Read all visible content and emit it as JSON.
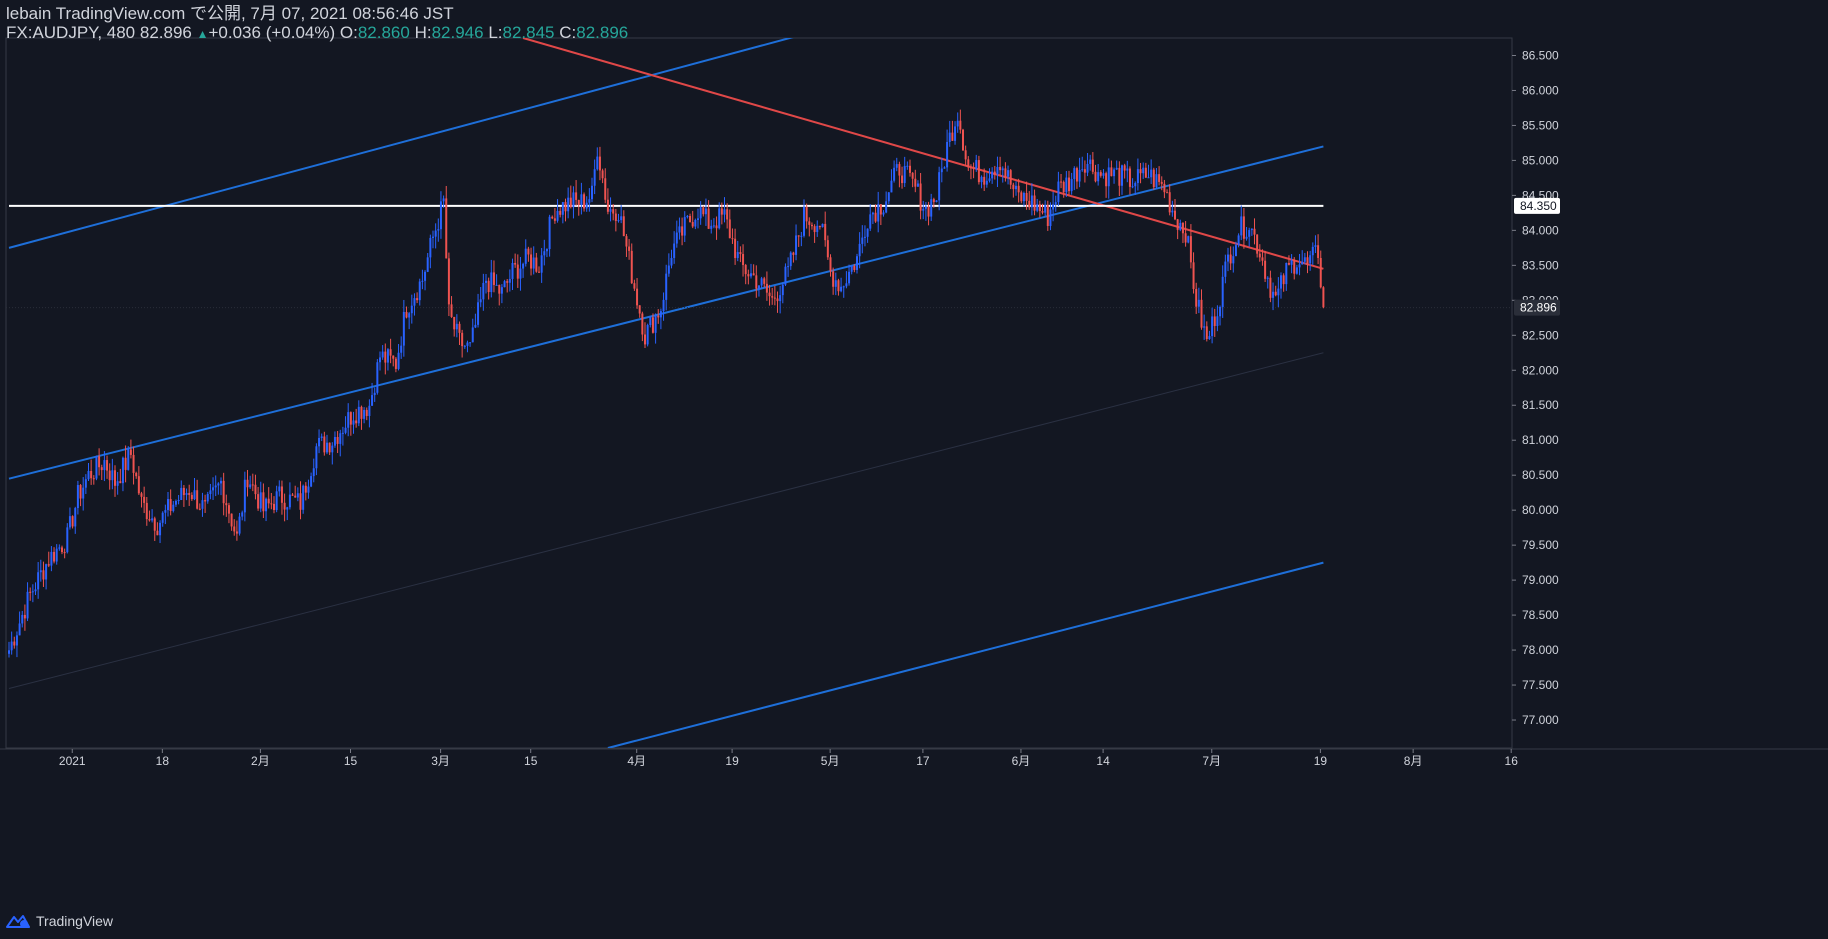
{
  "header": {
    "publish_line": "lebain TradingView.com で公開, 7月 07, 2021 08:56:46 JST",
    "symbol": "FX:AUDJPY, 480",
    "last": "82.896",
    "arrow": "▲",
    "change": "+0.036 (+0.04%)",
    "o_label": "O:",
    "o_value": "82.860",
    "h_label": "H:",
    "h_value": "82.946",
    "l_label": "L:",
    "l_value": "82.845",
    "c_label": "C:",
    "c_value": "82.896"
  },
  "footer": {
    "brand": "TradingView",
    "logo_icon": "tradingview-logo-icon"
  },
  "colors": {
    "background": "#131722",
    "up": "#2962ff",
    "down": "#ef5350",
    "channel": "#1e6fd9",
    "resistance": "#e04848",
    "level": "#ffffff",
    "axis_text": "#d1d4dc"
  },
  "chart_data": {
    "type": "candlestick",
    "symbol": "FX:AUDJPY",
    "interval": "480",
    "ylim": [
      76.6,
      86.75
    ],
    "yticks": [
      "86.500",
      "86.000",
      "85.500",
      "85.000",
      "84.500",
      "84.000",
      "83.500",
      "83.000",
      "82.500",
      "82.000",
      "81.500",
      "81.000",
      "80.500",
      "80.000",
      "79.500",
      "79.000",
      "78.500",
      "78.000",
      "77.500",
      "77.000"
    ],
    "xticks": [
      "2021",
      "18",
      "2月",
      "15",
      "3月",
      "15",
      "4月",
      "19",
      "5月",
      "17",
      "6月",
      "14",
      "7月",
      "19",
      "8月",
      "16"
    ],
    "price_labels": [
      {
        "text": "84.350",
        "value": 84.35,
        "style": "level"
      },
      {
        "text": "82.896",
        "value": 82.896,
        "style": "last"
      }
    ],
    "anchors": [
      [
        0,
        78.0
      ],
      [
        8,
        78.8
      ],
      [
        15,
        79.3
      ],
      [
        22,
        79.6
      ],
      [
        26,
        80.2
      ],
      [
        30,
        80.5
      ],
      [
        36,
        80.7
      ],
      [
        40,
        80.4
      ],
      [
        46,
        80.8
      ],
      [
        50,
        80.1
      ],
      [
        56,
        79.8
      ],
      [
        62,
        80.1
      ],
      [
        68,
        80.3
      ],
      [
        74,
        80.0
      ],
      [
        80,
        80.4
      ],
      [
        86,
        79.6
      ],
      [
        90,
        80.5
      ],
      [
        96,
        80.0
      ],
      [
        102,
        80.2
      ],
      [
        110,
        80.1
      ],
      [
        116,
        80.9
      ],
      [
        122,
        81.0
      ],
      [
        130,
        81.4
      ],
      [
        136,
        81.5
      ],
      [
        140,
        82.2
      ],
      [
        146,
        82.1
      ],
      [
        150,
        82.9
      ],
      [
        156,
        83.3
      ],
      [
        160,
        83.9
      ],
      [
        164,
        84.4
      ],
      [
        166,
        82.8
      ],
      [
        170,
        82.4
      ],
      [
        174,
        82.3
      ],
      [
        180,
        83.3
      ],
      [
        186,
        83.1
      ],
      [
        190,
        83.4
      ],
      [
        196,
        83.6
      ],
      [
        200,
        83.5
      ],
      [
        206,
        84.3
      ],
      [
        212,
        84.4
      ],
      [
        216,
        84.4
      ],
      [
        220,
        84.5
      ],
      [
        222,
        85.2
      ],
      [
        226,
        84.3
      ],
      [
        230,
        84.3
      ],
      [
        236,
        83.2
      ],
      [
        240,
        82.5
      ],
      [
        246,
        82.9
      ],
      [
        250,
        83.7
      ],
      [
        256,
        84.1
      ],
      [
        260,
        84.3
      ],
      [
        264,
        84.1
      ],
      [
        270,
        84.2
      ],
      [
        276,
        83.5
      ],
      [
        282,
        83.3
      ],
      [
        288,
        83.0
      ],
      [
        294,
        83.4
      ],
      [
        300,
        84.2
      ],
      [
        306,
        84.1
      ],
      [
        310,
        83.4
      ],
      [
        314,
        83.2
      ],
      [
        320,
        83.6
      ],
      [
        324,
        84.2
      ],
      [
        330,
        84.4
      ],
      [
        336,
        84.9
      ],
      [
        342,
        84.6
      ],
      [
        346,
        84.3
      ],
      [
        350,
        84.5
      ],
      [
        354,
        85.2
      ],
      [
        358,
        85.7
      ],
      [
        362,
        84.9
      ],
      [
        368,
        84.8
      ],
      [
        374,
        85.0
      ],
      [
        380,
        84.5
      ],
      [
        386,
        84.4
      ],
      [
        392,
        84.2
      ],
      [
        396,
        84.6
      ],
      [
        400,
        84.7
      ],
      [
        406,
        85.0
      ],
      [
        412,
        84.8
      ],
      [
        418,
        84.8
      ],
      [
        424,
        84.7
      ],
      [
        430,
        84.8
      ],
      [
        436,
        84.6
      ],
      [
        440,
        84.2
      ],
      [
        444,
        84.0
      ],
      [
        448,
        83.0
      ],
      [
        452,
        82.4
      ],
      [
        456,
        82.9
      ],
      [
        460,
        83.6
      ],
      [
        464,
        84.0
      ],
      [
        468,
        84.1
      ],
      [
        472,
        83.7
      ],
      [
        476,
        83.2
      ],
      [
        478,
        83.0
      ],
      [
        482,
        83.4
      ],
      [
        486,
        83.6
      ],
      [
        490,
        83.5
      ],
      [
        494,
        83.7
      ],
      [
        496,
        82.9
      ]
    ],
    "lines": [
      {
        "name": "channel-upper-line",
        "style": "channel",
        "p1": [
          0,
          83.75
        ],
        "p2": [
          496,
          88.8
        ]
      },
      {
        "name": "channel-middle-line",
        "style": "channel",
        "p1": [
          0,
          80.45
        ],
        "p2": [
          496,
          85.2
        ]
      },
      {
        "name": "channel-lower-line",
        "style": "channel",
        "p1": [
          226,
          76.6
        ],
        "p2": [
          496,
          79.25
        ]
      },
      {
        "name": "channel-faint-line",
        "style": "faint",
        "p1": [
          0,
          77.45
        ],
        "p2": [
          496,
          82.25
        ]
      },
      {
        "name": "resistance-line",
        "style": "resistance",
        "p1": [
          194,
          86.75
        ],
        "p2": [
          496,
          83.45
        ]
      },
      {
        "name": "level-84350-line",
        "style": "level",
        "p1": [
          0,
          84.35
        ],
        "p2": [
          496,
          84.35
        ]
      }
    ],
    "grid": false
  }
}
